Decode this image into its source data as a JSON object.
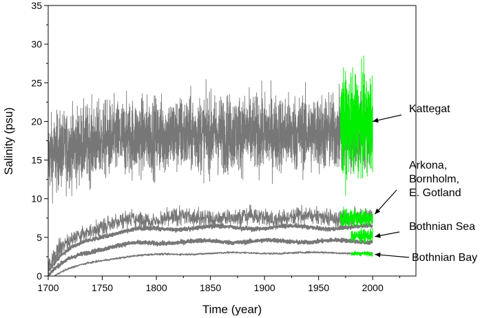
{
  "chart_data": {
    "type": "line",
    "title": "",
    "xlabel": "Time (year)",
    "ylabel": "Salinity  (psu)",
    "xlim": [
      1700,
      2040
    ],
    "ylim": [
      0,
      35
    ],
    "x_ticks": [
      1700,
      1750,
      1800,
      1850,
      1900,
      1950,
      2000
    ],
    "y_ticks": [
      0,
      5,
      10,
      15,
      20,
      25,
      30,
      35
    ],
    "grid": false,
    "legend": "none",
    "colors": {
      "model": "#777777",
      "observed": "#00ee00",
      "text": "#000000"
    },
    "series": [
      {
        "region": "Kattegat",
        "start_year": 1700,
        "end_year": 2000,
        "model_mean_start": 15.5,
        "model_mean_plateau": 18.5,
        "model_min": 8.5,
        "model_max": 27.5,
        "obs_start_year": 1970,
        "obs_mean": 19.5,
        "obs_min": 9.5,
        "obs_max": 30.5
      },
      {
        "region": "Arkona, Bornholm, E. Gotland",
        "start_year": 1700,
        "end_year": 2000,
        "model_lines_plateau": [
          7.6,
          6.3
        ],
        "model_max": 9.5,
        "obs_start_year": 1970,
        "obs_mean": 7.5,
        "obs_min": 6.5,
        "obs_max": 9.3
      },
      {
        "region": "Bothnian Sea",
        "start_year": 1700,
        "end_year": 2000,
        "model_lines_plateau": [
          4.5
        ],
        "obs_start_year": 1980,
        "obs_mean": 5.2,
        "obs_min": 4.2,
        "obs_max": 6.2
      },
      {
        "region": "Bothnian Bay",
        "start_year": 1700,
        "end_year": 2000,
        "model_lines_plateau": [
          3.0
        ],
        "obs_start_year": 1980,
        "obs_mean": 2.9,
        "obs_min": 2.5,
        "obs_max": 3.6
      }
    ],
    "annotations": [
      {
        "lines": [
          "Kattegat"
        ],
        "arrow_to": [
          2000,
          20.0
        ]
      },
      {
        "lines": [
          "Arkona,",
          "Bornholm,",
          "E. Gotland"
        ],
        "arrow_to": [
          2002,
          8.0
        ]
      },
      {
        "lines": [
          "Bothnian Sea"
        ],
        "arrow_to": [
          2002,
          5.1
        ]
      },
      {
        "lines": [
          "Bothnian Bay"
        ],
        "arrow_to": [
          2002,
          2.8
        ]
      }
    ]
  }
}
